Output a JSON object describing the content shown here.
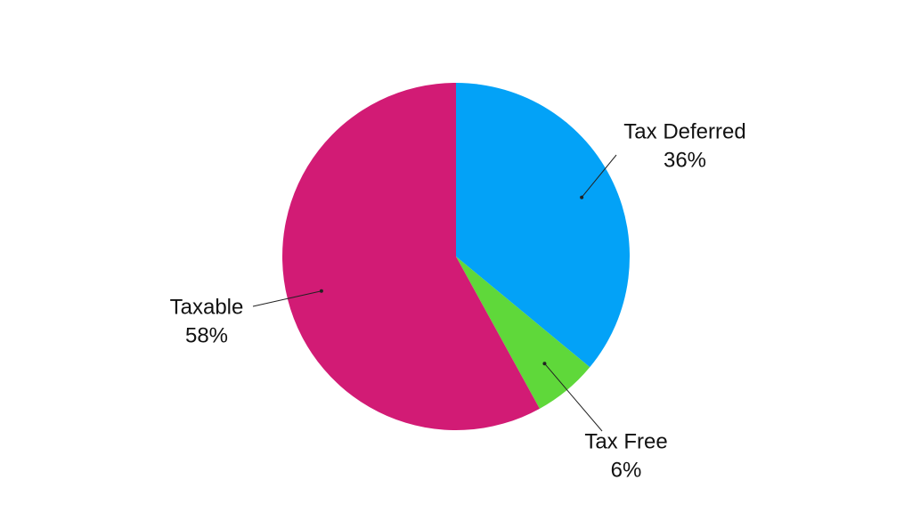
{
  "chart_data": {
    "type": "pie",
    "categories": [
      "Tax Deferred",
      "Tax Free",
      "Taxable"
    ],
    "values": [
      36,
      6,
      58
    ],
    "value_labels": [
      "36%",
      "6%",
      "58%"
    ],
    "colors": [
      "#03a2f7",
      "#5fd83a",
      "#d21b75"
    ]
  }
}
